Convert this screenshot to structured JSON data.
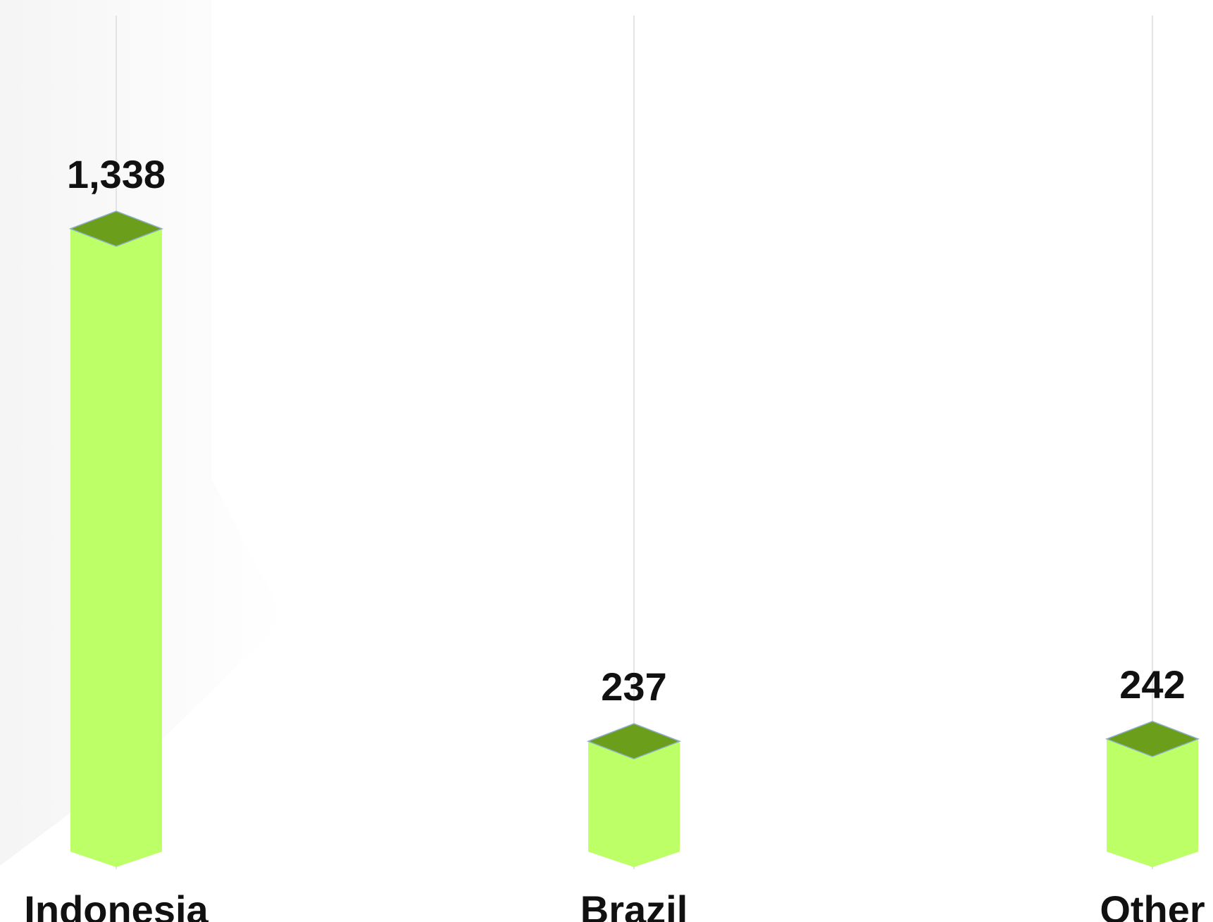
{
  "chart_data": {
    "type": "bar",
    "categories": [
      "Indonesia",
      "Brazil",
      "Other"
    ],
    "values": [
      1338,
      237,
      242
    ],
    "value_labels": [
      "1,338",
      "237",
      "242"
    ],
    "title": "",
    "xlabel": "",
    "ylabel": "",
    "colors": {
      "bar_face": "#bcff66",
      "bar_top": "#6a9e1b",
      "grid_line": "#e4e4e4",
      "background_shape": "#f4f4f4",
      "text": "#111111"
    },
    "grid": "vertical lines at categories",
    "legend": "none"
  }
}
